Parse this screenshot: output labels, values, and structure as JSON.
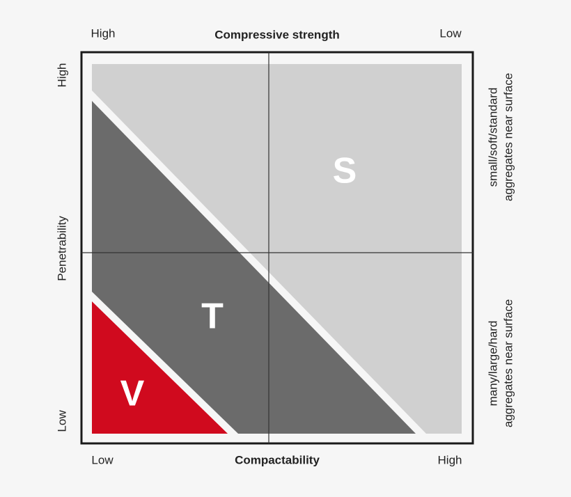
{
  "top": {
    "left": "High",
    "title": "Compressive strength",
    "right": "Low"
  },
  "bottom": {
    "left": "Low",
    "title": "Compactability",
    "right": "High"
  },
  "left_axis": {
    "top": "High",
    "title": "Penetrability",
    "bottom": "Low"
  },
  "right_axis": {
    "upper": [
      "small/soft/standard",
      "aggregates near surface"
    ],
    "lower": [
      "many/large/hard",
      "aggregates near surface"
    ]
  },
  "zones": {
    "s": "S",
    "t": "T",
    "v": "V"
  }
}
